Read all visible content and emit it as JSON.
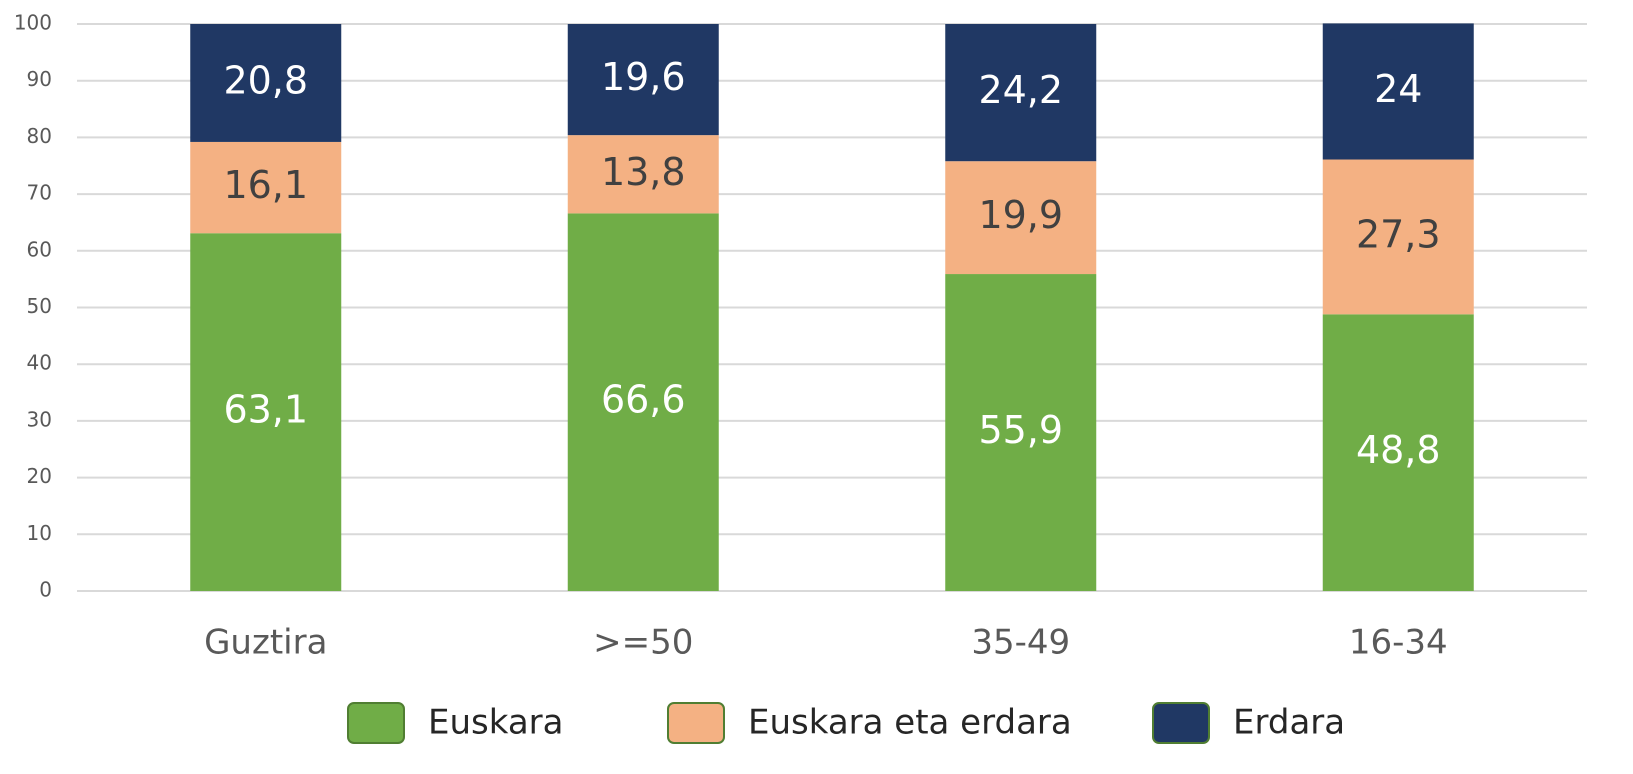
{
  "chart_data": {
    "type": "stacked_bar",
    "categories": [
      "Guztira",
      ">=50",
      "35-49",
      "16-34"
    ],
    "series": [
      {
        "name": "Euskara",
        "color": "#70ad47",
        "values": [
          63.1,
          66.6,
          55.9,
          48.8
        ],
        "value_labels": [
          "63,1",
          "66,6",
          "55,9",
          "48,8"
        ]
      },
      {
        "name": "Euskara eta erdara",
        "color": "#f4b183",
        "values": [
          16.1,
          13.8,
          19.9,
          27.3
        ],
        "value_labels": [
          "16,1",
          "13,8",
          "19,9",
          "27,3"
        ]
      },
      {
        "name": "Erdara",
        "color": "#203864",
        "values": [
          20.8,
          19.6,
          24.2,
          24
        ],
        "value_labels": [
          "20,8",
          "19,6",
          "24,2",
          "24"
        ]
      }
    ],
    "ylim": [
      0,
      100
    ],
    "yticks": [
      0,
      10,
      20,
      30,
      40,
      50,
      60,
      70,
      80,
      90,
      100
    ],
    "grid": true,
    "legend": "bottom"
  }
}
